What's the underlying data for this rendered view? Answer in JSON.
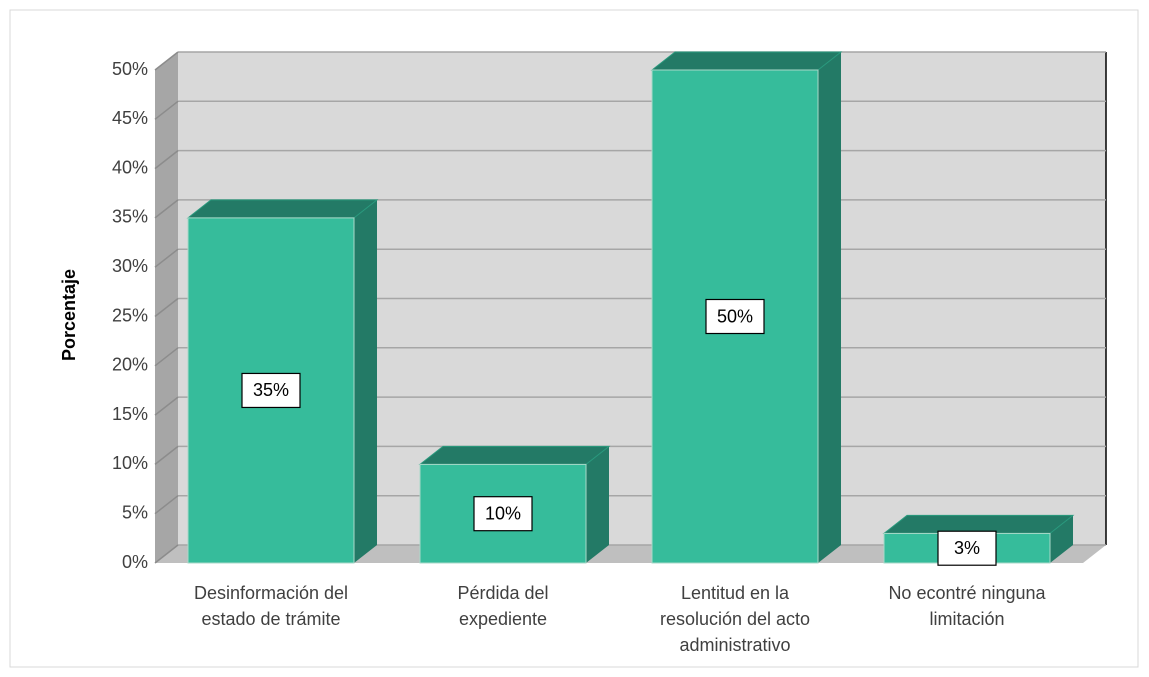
{
  "chart_data": {
    "type": "bar3d",
    "y_label": "Porcentaje",
    "categories": [
      "Desinformación del estado de trámite",
      "Pérdida del expediente",
      "Lentitud en la resolución del acto administrativo",
      "No econtré ninguna limitación"
    ],
    "values": [
      35,
      10,
      50,
      3
    ],
    "value_labels": [
      "35%",
      "10%",
      "50%",
      "3%"
    ],
    "color": "#36bc9b",
    "shade_color": "#237a66",
    "ylim": [
      0,
      50
    ],
    "yticks": [
      {
        "value": 0,
        "label": "0%"
      },
      {
        "value": 5,
        "label": "5%"
      },
      {
        "value": 10,
        "label": "10%"
      },
      {
        "value": 15,
        "label": "15%"
      },
      {
        "value": 20,
        "label": "20%"
      },
      {
        "value": 25,
        "label": "25%"
      },
      {
        "value": 30,
        "label": "30%"
      },
      {
        "value": 35,
        "label": "35%"
      },
      {
        "value": 40,
        "label": "40%"
      },
      {
        "value": 45,
        "label": "45%"
      },
      {
        "value": 50,
        "label": "50%"
      }
    ],
    "grid": true
  }
}
